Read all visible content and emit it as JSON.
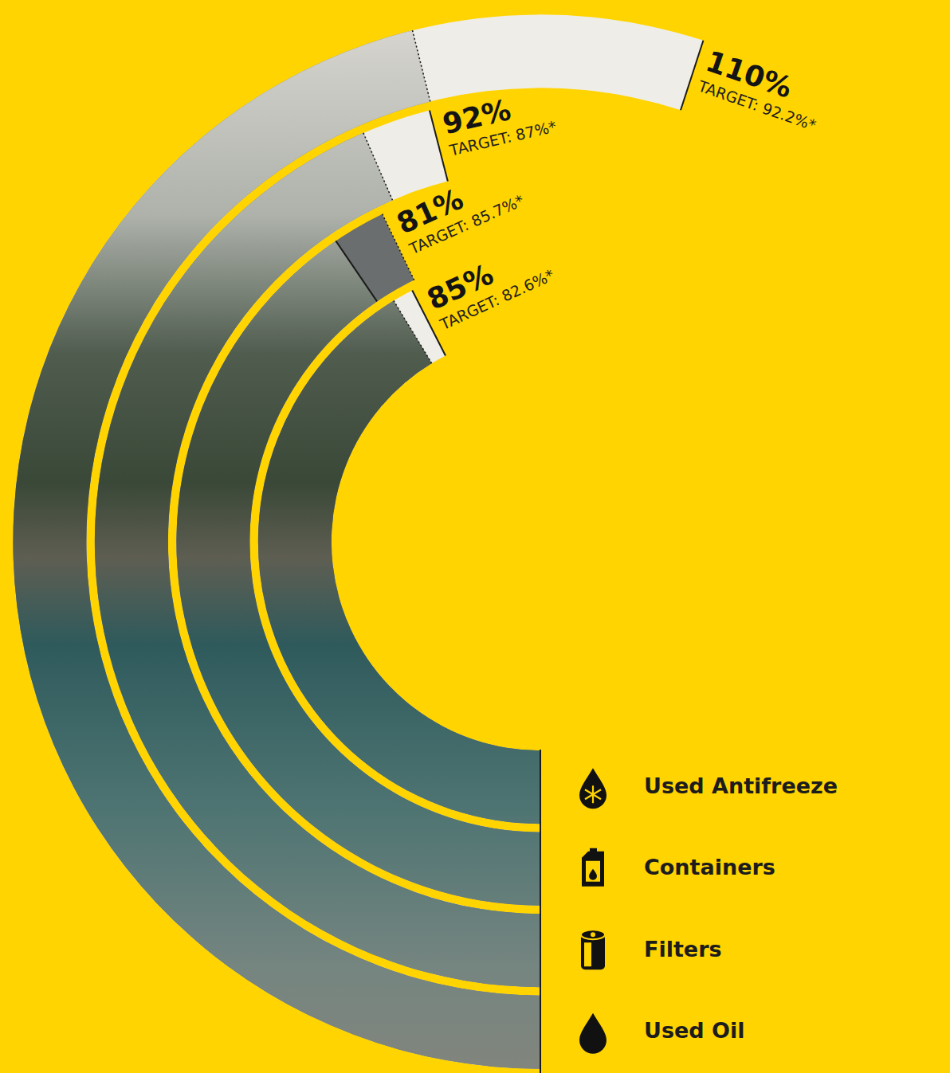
{
  "chart_data": {
    "type": "radial_bar",
    "categories": [
      "Used Antifreeze",
      "Containers",
      "Filters",
      "Used Oil"
    ],
    "values": [
      85,
      81,
      92,
      110
    ],
    "value_labels": [
      "85%",
      "81%",
      "92%",
      "110%"
    ],
    "targets": [
      82.6,
      85.7,
      87,
      92.2
    ],
    "target_labels": [
      "TARGET: 82.6%*",
      "TARGET: 85.7%*",
      "TARGET: 87%*",
      "TARGET: 92.2%*"
    ],
    "xlim": [
      0,
      200
    ],
    "tick_labels": false,
    "data_labels": true
  }
}
